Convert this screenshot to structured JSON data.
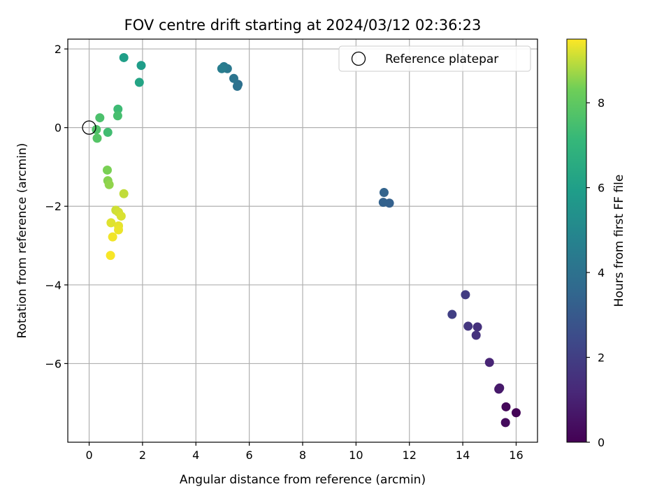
{
  "chart_data": {
    "type": "scatter",
    "title": "FOV centre drift starting at 2024/03/12 02:36:23",
    "xlabel": "Angular distance from reference (arcmin)",
    "ylabel": "Rotation from reference (arcmin)",
    "xlim": [
      -0.8,
      16.8
    ],
    "ylim": [
      -8.0,
      2.25
    ],
    "xticks": [
      0,
      2,
      4,
      6,
      8,
      10,
      12,
      14,
      16
    ],
    "yticks": [
      -6,
      -4,
      -2,
      0,
      2
    ],
    "tick_labels_x": [
      "0",
      "2",
      "4",
      "6",
      "8",
      "10",
      "12",
      "14",
      "16"
    ],
    "tick_labels_y": [
      "−6",
      "−4",
      "−2",
      "0",
      "2"
    ],
    "grid": true,
    "legend": {
      "placement": "top-right",
      "entries": [
        "Reference platepar"
      ]
    },
    "reference_point": {
      "name": "Reference platepar",
      "x": 0,
      "y": 0
    },
    "colorbar": {
      "label": "Hours from first FF file",
      "min": 0,
      "max": 9.5,
      "ticks": [
        0,
        2,
        4,
        6,
        8
      ],
      "tick_labels": [
        "0",
        "2",
        "4",
        "6",
        "8"
      ],
      "colormap": "viridis"
    },
    "points": [
      {
        "x": 16.0,
        "y": -7.25,
        "hours": 0.1
      },
      {
        "x": 15.62,
        "y": -7.1,
        "hours": 0.2
      },
      {
        "x": 15.6,
        "y": -7.5,
        "hours": 0.3
      },
      {
        "x": 15.35,
        "y": -6.65,
        "hours": 0.7
      },
      {
        "x": 15.38,
        "y": -6.62,
        "hours": 0.75
      },
      {
        "x": 15.0,
        "y": -5.97,
        "hours": 1.1
      },
      {
        "x": 14.55,
        "y": -5.07,
        "hours": 1.5
      },
      {
        "x": 14.5,
        "y": -5.28,
        "hours": 1.55
      },
      {
        "x": 14.2,
        "y": -5.05,
        "hours": 1.7
      },
      {
        "x": 14.1,
        "y": -4.25,
        "hours": 1.9
      },
      {
        "x": 13.6,
        "y": -4.75,
        "hours": 2.0
      },
      {
        "x": 11.25,
        "y": -1.92,
        "hours": 3.3
      },
      {
        "x": 11.02,
        "y": -1.9,
        "hours": 3.35
      },
      {
        "x": 11.05,
        "y": -1.65,
        "hours": 3.4
      },
      {
        "x": 5.58,
        "y": 1.1,
        "hours": 3.9
      },
      {
        "x": 5.55,
        "y": 1.05,
        "hours": 4.0
      },
      {
        "x": 5.42,
        "y": 1.25,
        "hours": 4.1
      },
      {
        "x": 5.18,
        "y": 1.5,
        "hours": 4.3
      },
      {
        "x": 5.05,
        "y": 1.55,
        "hours": 4.4
      },
      {
        "x": 4.97,
        "y": 1.5,
        "hours": 4.5
      },
      {
        "x": 1.95,
        "y": 1.58,
        "hours": 5.9
      },
      {
        "x": 1.3,
        "y": 1.78,
        "hours": 6.0
      },
      {
        "x": 1.88,
        "y": 1.15,
        "hours": 6.2
      },
      {
        "x": 1.08,
        "y": 0.47,
        "hours": 7.3
      },
      {
        "x": 1.07,
        "y": 0.3,
        "hours": 7.5
      },
      {
        "x": 0.4,
        "y": 0.25,
        "hours": 7.6
      },
      {
        "x": 0.7,
        "y": -0.12,
        "hours": 7.4
      },
      {
        "x": 0.27,
        "y": -0.05,
        "hours": 7.7
      },
      {
        "x": 0.3,
        "y": -0.27,
        "hours": 7.8
      },
      {
        "x": 0.68,
        "y": -1.08,
        "hours": 8.4
      },
      {
        "x": 0.7,
        "y": -1.35,
        "hours": 8.5
      },
      {
        "x": 0.75,
        "y": -1.45,
        "hours": 8.6
      },
      {
        "x": 1.3,
        "y": -1.68,
        "hours": 9.0
      },
      {
        "x": 1.0,
        "y": -2.1,
        "hours": 9.1
      },
      {
        "x": 1.1,
        "y": -2.15,
        "hours": 9.15
      },
      {
        "x": 1.2,
        "y": -2.25,
        "hours": 9.2
      },
      {
        "x": 0.82,
        "y": -2.42,
        "hours": 9.25
      },
      {
        "x": 1.1,
        "y": -2.5,
        "hours": 9.3
      },
      {
        "x": 1.1,
        "y": -2.6,
        "hours": 9.35
      },
      {
        "x": 0.88,
        "y": -2.78,
        "hours": 9.4
      },
      {
        "x": 0.8,
        "y": -3.25,
        "hours": 9.45
      }
    ]
  }
}
